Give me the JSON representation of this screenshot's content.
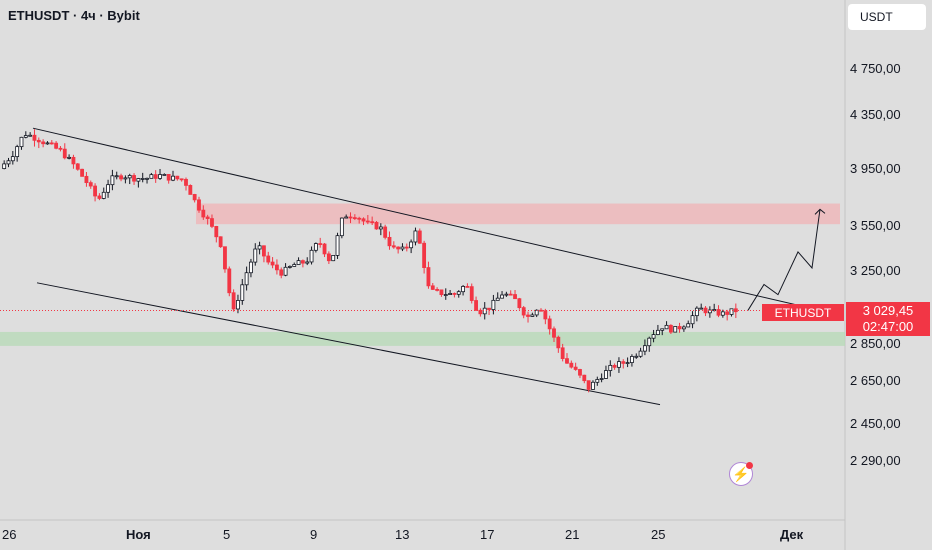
{
  "header": {
    "title": "ETHUSDT · 4ч · Bybit",
    "unit_button": "USDT"
  },
  "current": {
    "symbol": "ETHUSDT",
    "price": "3 029,45",
    "countdown": "02:47:00"
  },
  "colors": {
    "up": "#131722",
    "down": "#f23645",
    "resistance_zone": "#f0b3b6",
    "support_zone": "#b8dab8"
  },
  "chart_data": {
    "type": "candlestick",
    "title": "ETHUSDT · 4ч · Bybit",
    "y_axis": {
      "ticks": [
        4750,
        4350,
        3950,
        3550,
        3250,
        2850,
        2650,
        2450,
        2290
      ],
      "tick_labels": [
        "4 750,00",
        "4 350,00",
        "3 950,00",
        "3 550,00",
        "3 250,00",
        "2 850,00",
        "2 650,00",
        "2 450,00",
        "2 290,00"
      ],
      "scale": "log"
    },
    "x_axis": {
      "tick_labels": [
        "26",
        "Ноя",
        "5",
        "9",
        "13",
        "17",
        "21",
        "25",
        "Дек"
      ]
    },
    "price_path": [
      3950,
      4050,
      4220,
      4180,
      4130,
      4080,
      3980,
      3860,
      3720,
      3870,
      3900,
      3880,
      3880,
      3900,
      3880,
      3870,
      3700,
      3580,
      3430,
      3010,
      3230,
      3420,
      3300,
      3250,
      3300,
      3320,
      3450,
      3310,
      3620,
      3620,
      3560,
      3540,
      3400,
      3390,
      3520,
      3140,
      3130,
      3120,
      3180,
      3020,
      3050,
      3130,
      3090,
      2990,
      3060,
      2900,
      2760,
      2700,
      2620,
      2680,
      2730,
      2750,
      2800,
      2890,
      2940,
      2920,
      2960,
      3040,
      3020,
      3010,
      3029
    ],
    "resistance_zone": [
      3560,
      3700
    ],
    "support_zone": [
      2835,
      2910
    ],
    "descending_channel": {
      "upper_start": 4260,
      "upper_end": 3000,
      "lower_start": 3190,
      "lower_end": 2540
    },
    "projection_path": [
      3030,
      3180,
      3120,
      3380,
      3280,
      3660
    ]
  }
}
